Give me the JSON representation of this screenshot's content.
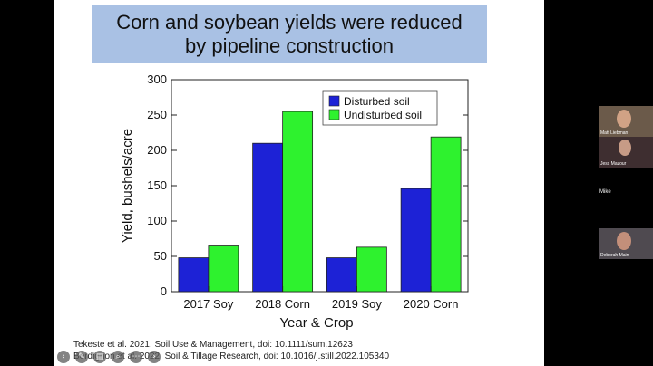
{
  "slide": {
    "title_line1": "Corn and soybean yields were reduced",
    "title_line2": "by pipeline construction",
    "citation_1": "Tekeste et al. 2021. Soil Use & Management, doi: 10.1111/sum.12623",
    "citation_2": "Bordignon et al. 2022. Soil & Tillage Research, doi: 10.1016/j.still.2022.105340"
  },
  "chart_data": {
    "type": "bar",
    "categories": [
      "2017 Soy",
      "2018 Corn",
      "2019 Soy",
      "2020 Corn"
    ],
    "series": [
      {
        "name": "Disturbed soil",
        "color": "#1d22d6",
        "values": [
          48,
          210,
          48,
          146
        ]
      },
      {
        "name": "Undisturbed soil",
        "color": "#2ef22e",
        "values": [
          66,
          255,
          63,
          219
        ]
      }
    ],
    "xlabel": "Year & Crop",
    "ylabel": "Yield, bushels/acre",
    "ylim": [
      0,
      300
    ],
    "yticks": [
      0,
      50,
      100,
      150,
      200,
      250,
      300
    ],
    "grid": false,
    "legend_position": "top-right"
  },
  "participants": [
    {
      "name": "Matt Liebman",
      "icon": "person-video"
    },
    {
      "name": "Jess Mazour",
      "icon": "person-video"
    },
    {
      "name": "Mike",
      "icon": "name-only"
    },
    {
      "name": "Deborah Main",
      "icon": "person-video"
    }
  ],
  "toolbar_icons": [
    "back-icon",
    "pen-icon",
    "slides-icon",
    "zoom-icon",
    "more-icon",
    "forward-icon"
  ]
}
